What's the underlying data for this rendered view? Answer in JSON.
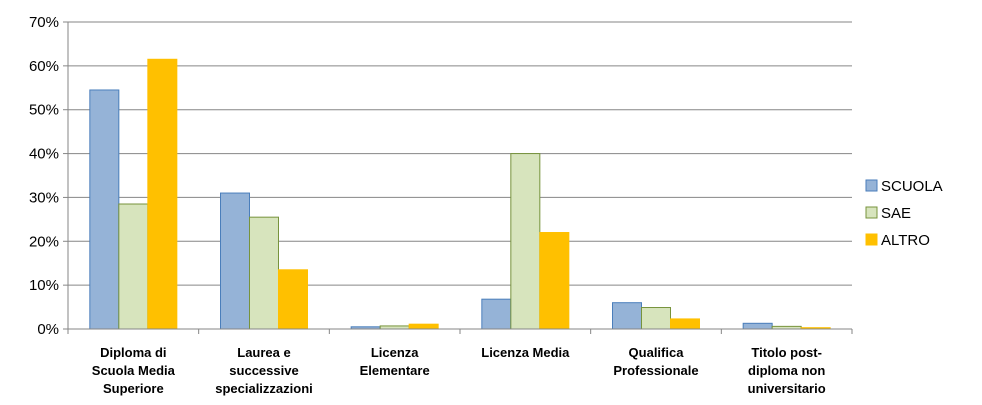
{
  "chart_data": {
    "type": "bar",
    "categories": [
      [
        "Diploma di",
        "Scuola Media",
        "Superiore"
      ],
      [
        "Laurea e",
        "successive",
        "specializzazioni"
      ],
      [
        "Licenza",
        "Elementare"
      ],
      [
        "Licenza Media"
      ],
      [
        "Qualifica",
        "Professionale"
      ],
      [
        "Titolo post-",
        "diploma non",
        "universitario"
      ]
    ],
    "series": [
      {
        "name": "SCUOLA",
        "color": "#95b3d7",
        "stroke": "#4a7ebb",
        "values": [
          54.5,
          31.0,
          0.5,
          6.8,
          6.0,
          1.3
        ]
      },
      {
        "name": "SAE",
        "color": "#d7e4bd",
        "stroke": "#77933c",
        "values": [
          28.5,
          25.5,
          0.7,
          40.0,
          4.9,
          0.6
        ]
      },
      {
        "name": "ALTRO",
        "color": "#ffc000",
        "stroke": "#ffc000",
        "values": [
          61.5,
          13.5,
          1.1,
          22.0,
          2.3,
          0.3
        ]
      }
    ],
    "ylim": [
      0,
      70
    ],
    "yticks": [
      "0%",
      "10%",
      "20%",
      "30%",
      "40%",
      "50%",
      "60%",
      "70%"
    ],
    "grid": true,
    "legend_position": "right",
    "title": "",
    "xlabel": "",
    "ylabel": ""
  }
}
